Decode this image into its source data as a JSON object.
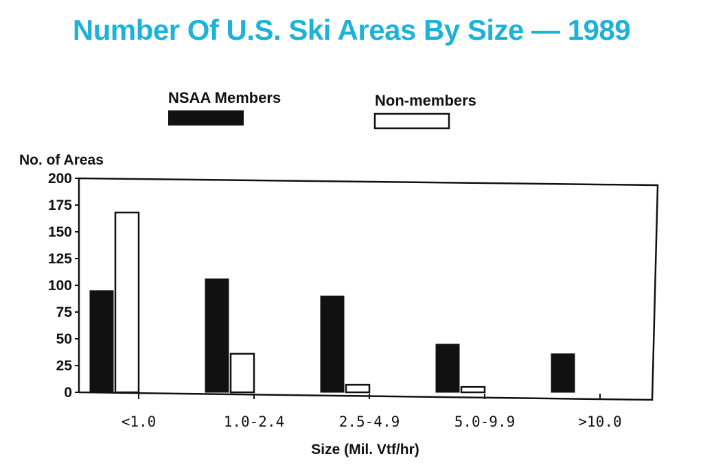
{
  "chart_data": {
    "type": "bar",
    "title": "Number Of U.S. Ski Areas By Size — 1989",
    "xlabel": "Size (Mil. Vtf/hr)",
    "ylabel": "No. of Areas",
    "categories": [
      "<1.0",
      "1.0-2.4",
      "2.5-4.9",
      "5.0-9.9",
      ">10.0"
    ],
    "series": [
      {
        "name": "NSAA Members",
        "values": [
          95,
          106,
          90,
          45,
          36
        ],
        "color": "#111111"
      },
      {
        "name": "Non-members",
        "values": [
          168,
          36,
          7,
          5,
          0
        ],
        "color": "#ffffff"
      }
    ],
    "ylim": [
      0,
      200
    ],
    "yticks": [
      0,
      25,
      50,
      75,
      100,
      125,
      150,
      175,
      200
    ],
    "grid": false,
    "legend_position": "top"
  },
  "colors": {
    "title": "#1fb2d8",
    "ink": "#111111"
  }
}
